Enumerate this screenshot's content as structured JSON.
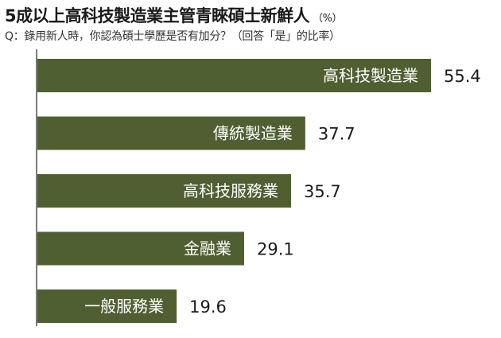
{
  "header": {
    "title": "5成以上高科技製造業主管青睞碩士新鮮人",
    "unit": "（%）",
    "subtitle": "Q：錄用新人時，你認為碩士學歷是否有加分？（回答「是」的比率）"
  },
  "chart_data": {
    "type": "bar",
    "orientation": "horizontal",
    "categories": [
      "高科技製造業",
      "傳統製造業",
      "高科技服務業",
      "金融業",
      "一般服務業"
    ],
    "values": [
      55.4,
      37.7,
      35.7,
      29.1,
      19.6
    ],
    "value_labels": [
      "55.4",
      "37.7",
      "35.7",
      "29.1",
      "19.6"
    ],
    "title": "5成以上高科技製造業主管青睞碩士新鮮人",
    "xlabel": "",
    "ylabel": "",
    "xlim": [
      0,
      55.4
    ],
    "grid": false,
    "legend": "none",
    "bar_color": "#4f5f31",
    "axis_color": "#7a7a7a"
  }
}
